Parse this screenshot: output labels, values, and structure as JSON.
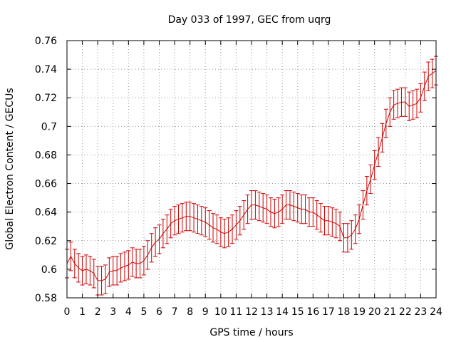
{
  "chart_data": {
    "type": "line",
    "title": "Day 033 of 1997, GEC from uqrg",
    "xlabel": "GPS time / hours",
    "ylabel": "Global Electron Content / GECUs",
    "xlim": [
      0,
      24
    ],
    "ylim": [
      0.58,
      0.76
    ],
    "x_ticks": [
      0,
      1,
      2,
      3,
      4,
      5,
      6,
      7,
      8,
      9,
      10,
      11,
      12,
      13,
      14,
      15,
      16,
      17,
      18,
      19,
      20,
      21,
      22,
      23,
      24
    ],
    "x_tick_labels": [
      "0",
      "1",
      "2",
      "3",
      "4",
      "5",
      "6",
      "7",
      "8",
      "9",
      "10",
      "11",
      "12",
      "13",
      "14",
      "15",
      "16",
      "17",
      "18",
      "19",
      "20",
      "21",
      "22",
      "23",
      "24"
    ],
    "y_ticks": [
      0.58,
      0.6,
      0.62,
      0.64,
      0.66,
      0.68,
      0.7,
      0.72,
      0.74,
      0.76
    ],
    "y_tick_labels": [
      "0.58",
      "0.6",
      "0.62",
      "0.64",
      "0.66",
      "0.68",
      "0.7",
      "0.72",
      "0.74",
      "0.76"
    ],
    "grid": true,
    "series": [
      {
        "name": "GEC",
        "color": "#cc0000",
        "error_bar": 0.01,
        "x": [
          0,
          0.25,
          0.5,
          0.75,
          1,
          1.25,
          1.5,
          1.75,
          2,
          2.25,
          2.5,
          2.75,
          3,
          3.25,
          3.5,
          3.75,
          4,
          4.25,
          4.5,
          4.75,
          5,
          5.25,
          5.5,
          5.75,
          6,
          6.25,
          6.5,
          6.75,
          7,
          7.25,
          7.5,
          7.75,
          8,
          8.25,
          8.5,
          8.75,
          9,
          9.25,
          9.5,
          9.75,
          10,
          10.25,
          10.5,
          10.75,
          11,
          11.25,
          11.5,
          11.75,
          12,
          12.25,
          12.5,
          12.75,
          13,
          13.25,
          13.5,
          13.75,
          14,
          14.25,
          14.5,
          14.75,
          15,
          15.25,
          15.5,
          15.75,
          16,
          16.25,
          16.5,
          16.75,
          17,
          17.25,
          17.5,
          17.75,
          18,
          18.25,
          18.5,
          18.75,
          19,
          19.25,
          19.5,
          19.75,
          20,
          20.25,
          20.5,
          20.75,
          21,
          21.25,
          21.5,
          21.75,
          22,
          22.25,
          22.5,
          22.75,
          23,
          23.25,
          23.5,
          23.75,
          24
        ],
        "y": [
          0.604,
          0.609,
          0.604,
          0.601,
          0.599,
          0.6,
          0.599,
          0.597,
          0.592,
          0.592,
          0.593,
          0.598,
          0.599,
          0.599,
          0.601,
          0.602,
          0.603,
          0.605,
          0.604,
          0.604,
          0.606,
          0.61,
          0.615,
          0.619,
          0.621,
          0.625,
          0.628,
          0.632,
          0.634,
          0.635,
          0.636,
          0.637,
          0.637,
          0.636,
          0.635,
          0.634,
          0.633,
          0.631,
          0.629,
          0.628,
          0.626,
          0.625,
          0.626,
          0.628,
          0.631,
          0.634,
          0.638,
          0.642,
          0.645,
          0.645,
          0.644,
          0.643,
          0.642,
          0.64,
          0.639,
          0.64,
          0.642,
          0.645,
          0.645,
          0.644,
          0.643,
          0.642,
          0.642,
          0.64,
          0.64,
          0.638,
          0.636,
          0.634,
          0.634,
          0.633,
          0.632,
          0.63,
          0.622,
          0.622,
          0.624,
          0.628,
          0.635,
          0.645,
          0.655,
          0.663,
          0.673,
          0.682,
          0.692,
          0.702,
          0.71,
          0.715,
          0.716,
          0.717,
          0.717,
          0.714,
          0.715,
          0.716,
          0.72,
          0.728,
          0.735,
          0.737,
          0.739
        ]
      }
    ]
  }
}
